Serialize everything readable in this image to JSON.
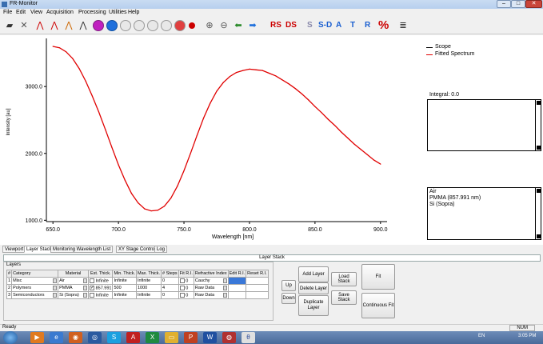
{
  "window": {
    "title": "FR-Monitor",
    "controls": [
      "–",
      "□",
      "✕"
    ]
  },
  "menu": [
    "File",
    "Edit",
    "View",
    "Acquisition",
    "Processing",
    "Utilities",
    "Help"
  ],
  "toolbar": {
    "text_buttons": [
      "RS",
      "DS",
      "S",
      "S-D",
      "A",
      "T",
      "R",
      "%"
    ]
  },
  "legend": {
    "items": [
      {
        "label": "Scope",
        "color": "#000000"
      },
      {
        "label": "Fitted Spectrum",
        "color": "#e00000"
      }
    ]
  },
  "integral_label": "Integral: 0.0",
  "stack_list": [
    "Air",
    "PMMA (857.991 nm)",
    "Si (Sopra)"
  ],
  "chart_data": {
    "type": "line",
    "xlabel": "Wavelength [nm]",
    "ylabel": "Intensity [au]",
    "xlim": [
      645,
      905
    ],
    "ylim": [
      980,
      3720
    ],
    "x_ticks": [
      "650.0",
      "700.0",
      "750.0",
      "800.0",
      "850.0",
      "900.0"
    ],
    "y_ticks": [
      "1000.0",
      "2000.0",
      "3000.0"
    ],
    "series": [
      {
        "name": "Fitted Spectrum",
        "color": "#e00000",
        "x": [
          650,
          655,
          660,
          665,
          670,
          675,
          680,
          685,
          690,
          695,
          700,
          705,
          710,
          715,
          720,
          725,
          730,
          735,
          740,
          745,
          750,
          755,
          760,
          765,
          770,
          775,
          780,
          785,
          790,
          795,
          800,
          805,
          810,
          815,
          820,
          825,
          830,
          835,
          840,
          845,
          850,
          855,
          860,
          865,
          870,
          875,
          880,
          885,
          890,
          895,
          900
        ],
        "y": [
          3600,
          3580,
          3520,
          3420,
          3270,
          3080,
          2860,
          2620,
          2360,
          2090,
          1830,
          1600,
          1400,
          1260,
          1170,
          1140,
          1150,
          1210,
          1330,
          1510,
          1740,
          2000,
          2270,
          2530,
          2750,
          2930,
          3060,
          3150,
          3210,
          3240,
          3260,
          3250,
          3240,
          3200,
          3160,
          3100,
          3040,
          2970,
          2890,
          2800,
          2700,
          2610,
          2510,
          2420,
          2320,
          2230,
          2140,
          2060,
          1980,
          1900,
          1840
        ]
      }
    ]
  },
  "tabs": [
    "Viewport",
    "Layer Stack",
    "Monitoring Wavelength List",
    "XY Stage Control",
    "Log"
  ],
  "active_tab": "Layer Stack",
  "layer_stack_header": "Layer Stack",
  "layers_group_label": "Layers",
  "table": {
    "columns": [
      "#",
      "Category",
      "Material",
      "Est. Thick.",
      "Min. Thick.",
      "Max. Thick.",
      "# Steps",
      "Fit R.I.",
      "Refractive Index",
      "Edit R.I.",
      "Reset R.I."
    ],
    "rows": [
      {
        "n": "1",
        "category": "Misc",
        "material": "Air",
        "est": "Infinite",
        "min": "Infinite",
        "max": "Infinite",
        "steps": "0",
        "fit_ri_val": "0",
        "ri": "Cauchy"
      },
      {
        "n": "2",
        "category": "Polymers",
        "material": "PMMA",
        "est": "857.991",
        "min": "500",
        "max": "1000",
        "steps": "4",
        "fit_ri_val": "0",
        "ri": "Raw Data"
      },
      {
        "n": "3",
        "category": "Semiconductors",
        "material": "Si (Sopra)",
        "est": "Infinite",
        "min": "Infinite",
        "max": "Infinite",
        "steps": "0",
        "fit_ri_val": "0",
        "ri": "Raw Data"
      }
    ]
  },
  "buttons": {
    "up": "Up",
    "down": "Down",
    "add_layer": "Add Layer",
    "delete_layer": "Delete Layer",
    "duplicate_layer": "Duplicate Layer",
    "load_stack": "Load Stack",
    "save_stack": "Save Stack",
    "fit": "Fit",
    "continuous_fit": "Continuous Fit"
  },
  "status": {
    "left": "Ready",
    "right": "NUM"
  },
  "taskbar": {
    "tray_lang": "EN",
    "time": "3:05 PM"
  }
}
